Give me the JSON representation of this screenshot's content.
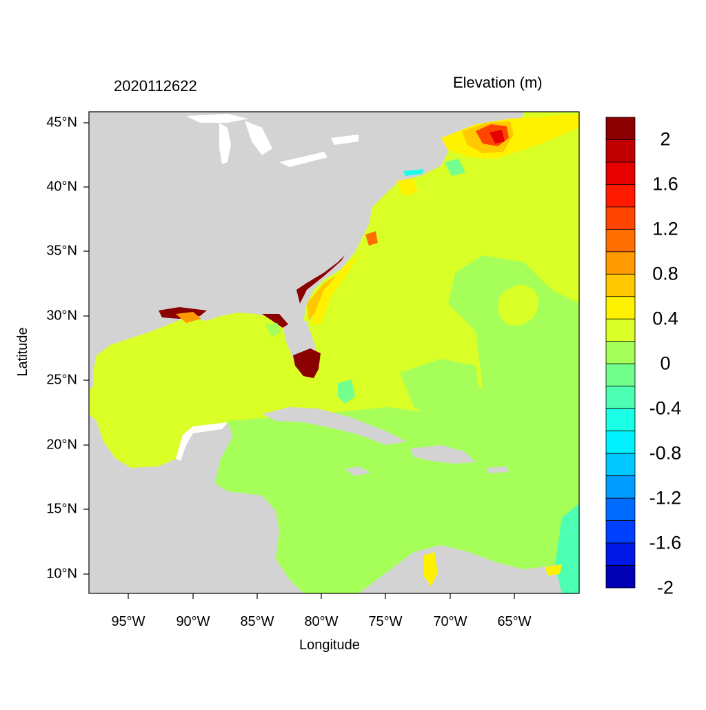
{
  "header": {
    "date": "2020112622",
    "variable": "Elevation (m)"
  },
  "axes": {
    "xlabel": "Longitude",
    "ylabel": "Latitude",
    "xticks": [
      "95°W",
      "90°W",
      "85°W",
      "80°W",
      "75°W",
      "70°W",
      "65°W"
    ],
    "yticks": [
      "45°N",
      "40°N",
      "35°N",
      "30°N",
      "25°N",
      "20°N",
      "15°N",
      "10°N"
    ]
  },
  "colorbar": {
    "labels": [
      "2",
      "1.6",
      "1.2",
      "0.8",
      "0.4",
      "0",
      "-0.4",
      "-0.8",
      "-1.2",
      "-1.6",
      "-2"
    ],
    "colors": [
      "#8b0000",
      "#c00000",
      "#e60000",
      "#ff1a00",
      "#ff4500",
      "#ff7000",
      "#ff9a00",
      "#ffc800",
      "#fff200",
      "#d9ff26",
      "#a6ff59",
      "#73ff8c",
      "#4dffb3",
      "#1affe6",
      "#00f2ff",
      "#00c8ff",
      "#009cff",
      "#006cff",
      "#0040ff",
      "#0018e6",
      "#0000b4"
    ]
  },
  "map_colors": {
    "land": "#d3d3d3",
    "ocean_main": "#d9ff26",
    "ocean_low": "#a6ff59",
    "surge_high": "#8b0000"
  }
}
